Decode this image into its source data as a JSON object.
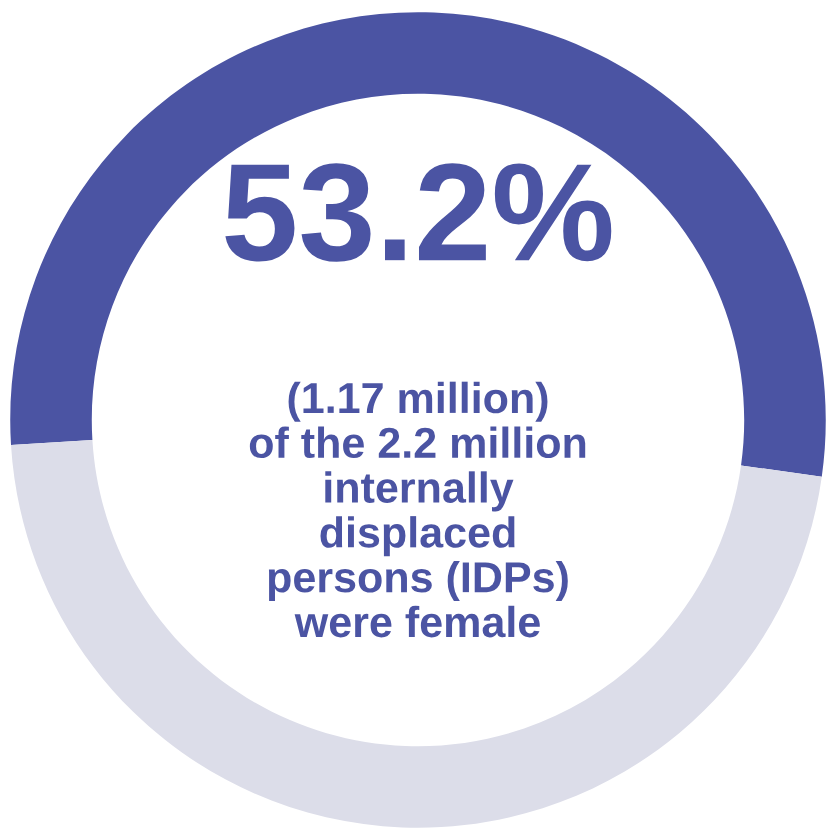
{
  "chart_data": {
    "type": "donut",
    "categories": [
      null,
      null
    ],
    "values": [
      53.2,
      46.8
    ],
    "colors": [
      "#4b54a3",
      "#dcdde9"
    ],
    "annotations": [
      "53.2%",
      "(1.17 million)\nof the 2.2 million\ninternally\ndisplaced\npersons (IDPs)\nwere female"
    ]
  }
}
